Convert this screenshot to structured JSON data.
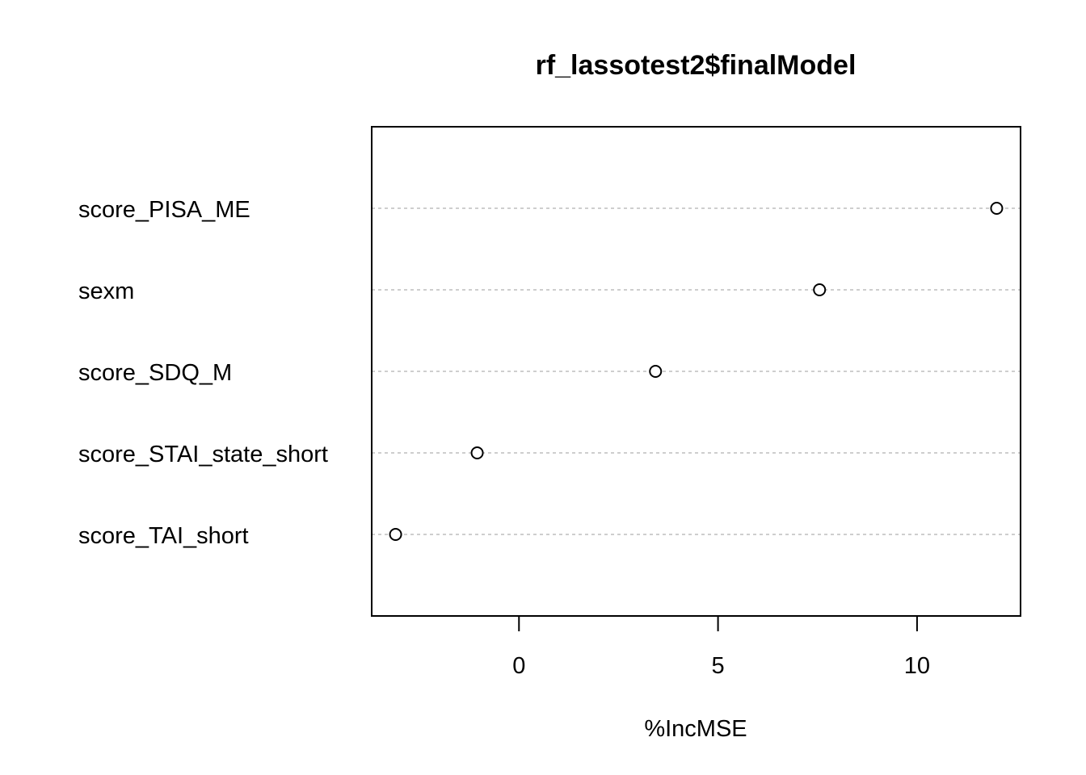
{
  "chart_data": {
    "type": "scatter",
    "title": "rf_lassotest2$finalModel",
    "xlabel": "%IncMSE",
    "ylabel": "",
    "categories": [
      "score_PISA_ME",
      "sexm",
      "score_SDQ_M",
      "score_STAI_state_short",
      "score_TAI_short"
    ],
    "values": [
      12.0,
      7.55,
      3.43,
      -1.05,
      -3.1
    ],
    "xlim": [
      -3.7,
      12.6
    ],
    "xticks": [
      0,
      5,
      10
    ],
    "xtick_labels": [
      "0",
      "5",
      "10"
    ],
    "grid": "dotted horizontal per category",
    "colors": {
      "point": "#000000",
      "grid": "#bebebe",
      "axis": "#000000"
    }
  }
}
